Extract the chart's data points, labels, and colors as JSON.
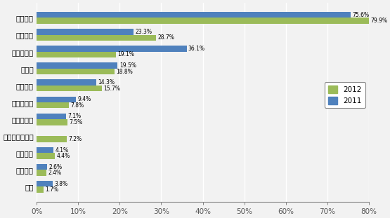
{
  "categories": [
    "产品质量",
    "供货能力",
    "产品性价比",
    "交货期",
    "技术支持",
    "技术领先性",
    "品牌知名度",
    "小批量供应服务",
    "产品组合",
    "付款条件",
    "信誉"
  ],
  "values_2012": [
    79.9,
    28.7,
    19.1,
    18.8,
    15.7,
    7.8,
    7.5,
    7.2,
    4.4,
    2.4,
    1.7
  ],
  "values_2011": [
    75.6,
    23.3,
    36.1,
    19.5,
    14.3,
    9.4,
    7.1,
    null,
    4.1,
    2.6,
    3.8
  ],
  "labels_2012": [
    "79.9%",
    "28.7%",
    "19.1%",
    "18.8%",
    "15.7%",
    "7.8%",
    "7.5%",
    "7.2%",
    "4.4%",
    "2.4%",
    "1.7%"
  ],
  "labels_2011": [
    "75.6%",
    "23.3%",
    "36.1%",
    "19.5%",
    "14.3%",
    "9.4%",
    "7.1%",
    null,
    "4.1%",
    "2.6%",
    "3.8%"
  ],
  "color_2012": "#9BBB59",
  "color_2011": "#4F81BD",
  "bar_height": 0.35,
  "xlim": [
    0,
    80
  ],
  "xticks": [
    0,
    10,
    20,
    30,
    40,
    50,
    60,
    70,
    80
  ],
  "xticklabels": [
    "0%",
    "10%",
    "20%",
    "30%",
    "40%",
    "50%",
    "60%",
    "70%",
    "80%"
  ],
  "legend_2012": "2012",
  "legend_2011": "2011",
  "background_color": "#F2F2F2",
  "figsize": [
    5.55,
    3.11
  ],
  "dpi": 100
}
